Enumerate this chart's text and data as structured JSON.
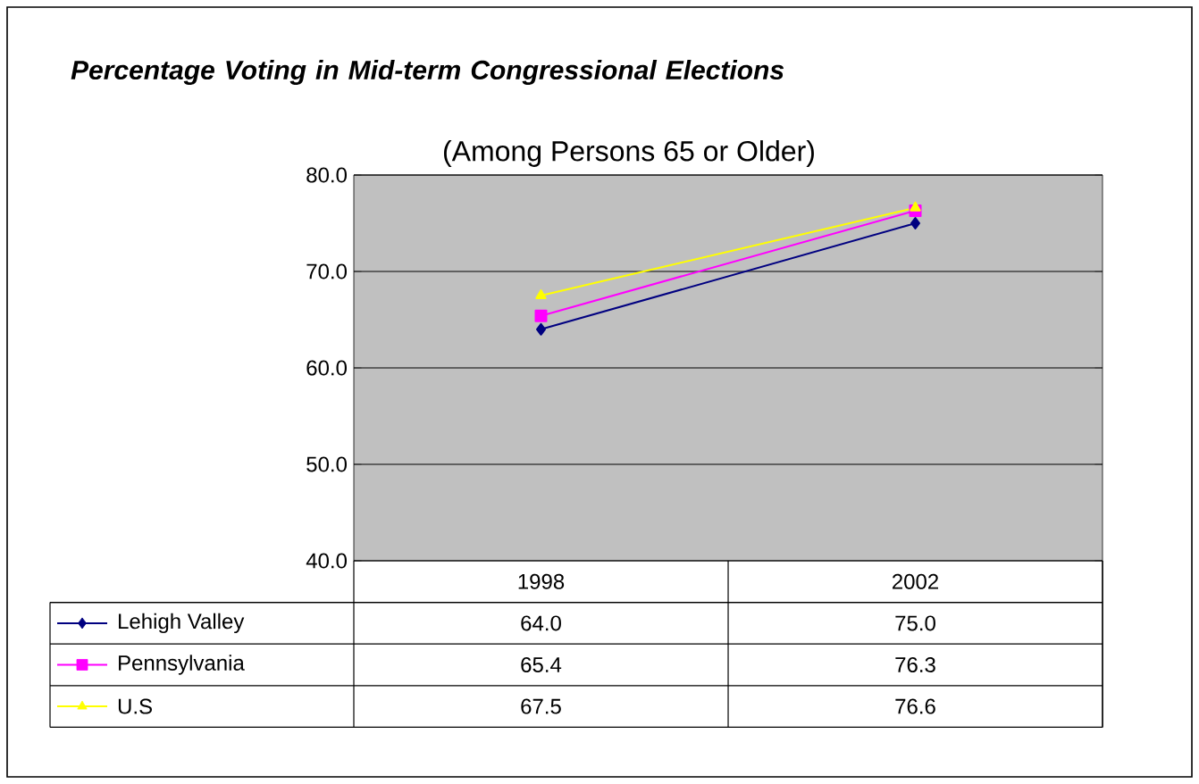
{
  "chart_data": {
    "type": "line",
    "title": "Percentage Voting in Mid-term Congressional Elections",
    "subtitle": "(Among Persons 65 or Older)",
    "categories": [
      "1998",
      "2002"
    ],
    "series": [
      {
        "name": "Lehigh Valley",
        "color": "#000080",
        "marker": "diamond",
        "values": [
          64.0,
          75.0
        ],
        "value_labels": [
          "64.0",
          "75.0"
        ]
      },
      {
        "name": "Pennsylvania",
        "color": "#ff00ff",
        "marker": "square",
        "values": [
          65.4,
          76.3
        ],
        "value_labels": [
          "65.4",
          "76.3"
        ]
      },
      {
        "name": "U.S",
        "color": "#ffff00",
        "marker": "triangle",
        "values": [
          67.5,
          76.6
        ],
        "value_labels": [
          "67.5",
          "76.6"
        ]
      }
    ],
    "ylim": [
      40,
      80
    ],
    "yticks": [
      {
        "value": 40,
        "label": "40.0"
      },
      {
        "value": 50,
        "label": "50.0"
      },
      {
        "value": 60,
        "label": "60.0"
      },
      {
        "value": 70,
        "label": "70.0"
      },
      {
        "value": 80,
        "label": "80.0"
      }
    ],
    "grid": "y",
    "legend": "bottom"
  }
}
